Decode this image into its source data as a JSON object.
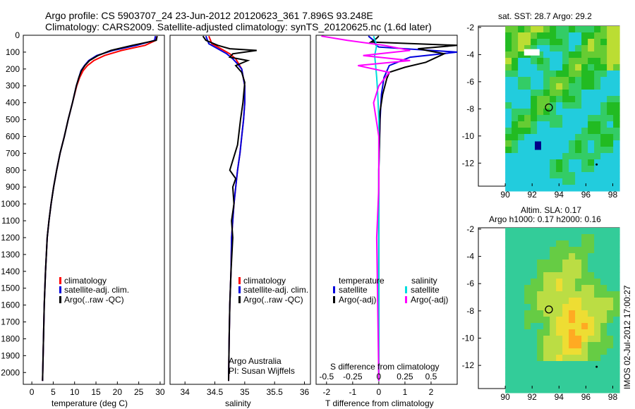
{
  "header": {
    "line1": "Argo profile: CS 5903707_24 23-Jun-2012 20120623_361 7.896S 93.248E",
    "line2": "Climatology: CARS2009. Satellite-adjusted climatology: synTS_20120625.nc (1.6d later)"
  },
  "colors": {
    "climatology": "#ff0000",
    "satellite": "#0000dd",
    "argo": "#000000",
    "salinity": "#00dddd",
    "argo_adj_salinity": "#ff00ff"
  },
  "panels": {
    "depth_ticks": [
      "0",
      "100",
      "200",
      "300",
      "400",
      "500",
      "600",
      "700",
      "800",
      "900",
      "1000",
      "1100",
      "1200",
      "1300",
      "1400",
      "1500",
      "1600",
      "1700",
      "1800",
      "1900",
      "2000"
    ],
    "temperature": {
      "xlabel": "temperature (deg C)",
      "xticks": [
        "0",
        "5",
        "10",
        "15",
        "20",
        "25",
        "30"
      ],
      "legend": [
        "climatology",
        "satellite-adj. clim.",
        "Argo(..raw -QC)"
      ]
    },
    "salinity": {
      "xlabel": "salinity",
      "xticks": [
        "34",
        "34.5",
        "35",
        "35.5",
        "36"
      ],
      "legend": [
        "climatology",
        "satellite-adj. clim.",
        "Argo(..raw -QC)"
      ],
      "note1": "Argo Australia",
      "note2": "PI: Susan Wijffels"
    },
    "difference": {
      "xlabel": "T difference from climatology",
      "xticks": [
        "-2",
        "-1",
        "0",
        "1",
        "2"
      ],
      "top_label": "S difference from climatology",
      "top_ticks": [
        "-0.5",
        "-0.25",
        "0",
        "0.25",
        "0.5"
      ],
      "legend_head_t": "temperature",
      "legend_head_s": "salinity",
      "legend_t": [
        "satellite",
        "Argo(-adj)"
      ],
      "legend_s": [
        "satellite",
        "Argo(-adj)"
      ]
    },
    "map_top": {
      "title": "sat. SST: 28.7 Argo: 29.2",
      "yticks": [
        "-2",
        "-4",
        "-6",
        "-8",
        "-10",
        "-12"
      ],
      "xticks": [
        "90",
        "92",
        "94",
        "96",
        "98"
      ]
    },
    "map_bottom": {
      "title1": "Altim. SLA: 0.17",
      "title2": "Argo h1000: 0.17 h2000: 0.16",
      "yticks": [
        "-2",
        "-4",
        "-6",
        "-8",
        "-10",
        "-12"
      ],
      "xticks": [
        "90",
        "92",
        "94",
        "96",
        "98"
      ]
    },
    "stamp": "IMOS 02-Jul-2012 17:00:27"
  },
  "chart_data": [
    {
      "type": "line",
      "title": "",
      "xlabel": "temperature (deg C)",
      "ylabel": "",
      "xlim": [
        -2,
        31
      ],
      "ylim": [
        2070,
        0
      ],
      "series": [
        {
          "name": "climatology",
          "x": [
            29.3,
            29.0,
            26.5,
            21.0,
            17.0,
            14.5,
            13.0,
            12.0,
            11.2,
            10.5,
            9.5,
            8.5,
            7.6,
            6.6,
            5.8,
            5.1,
            4.5,
            4.0,
            3.6,
            3.2,
            2.9,
            2.5
          ],
          "y": [
            5,
            30,
            60,
            90,
            120,
            150,
            180,
            210,
            250,
            300,
            400,
            500,
            600,
            700,
            800,
            900,
            1000,
            1100,
            1200,
            1400,
            1600,
            2050
          ]
        },
        {
          "name": "satellite-adj. clim.",
          "x": [
            28.9,
            28.7,
            24.5,
            19.0,
            15.2,
            13.3,
            12.3,
            11.5,
            11.0,
            10.4,
            9.5,
            8.5,
            7.6,
            6.6,
            5.8,
            5.1,
            4.5,
            4.0,
            3.6,
            3.2,
            2.9,
            2.5
          ],
          "y": [
            5,
            30,
            60,
            90,
            120,
            150,
            180,
            210,
            250,
            300,
            400,
            500,
            600,
            700,
            800,
            900,
            1000,
            1100,
            1200,
            1400,
            1600,
            2050
          ]
        },
        {
          "name": "Argo(..raw -QC)",
          "x": [
            29.3,
            29.1,
            23.5,
            18.5,
            15.5,
            13.5,
            12.4,
            11.6,
            11.0,
            10.4,
            9.5,
            8.5,
            7.6,
            6.6,
            5.8,
            5.1,
            4.5,
            4.0,
            3.6,
            3.2,
            2.9,
            2.5
          ],
          "y": [
            5,
            30,
            60,
            90,
            120,
            150,
            180,
            210,
            250,
            300,
            400,
            500,
            600,
            700,
            800,
            900,
            1000,
            1100,
            1200,
            1400,
            1600,
            2050
          ]
        }
      ]
    },
    {
      "type": "line",
      "title": "",
      "xlabel": "salinity",
      "ylabel": "",
      "xlim": [
        33.75,
        36.1
      ],
      "ylim": [
        2070,
        0
      ],
      "series": [
        {
          "name": "climatology",
          "x": [
            34.4,
            34.45,
            34.6,
            34.75,
            34.85,
            34.9,
            34.95,
            34.97,
            35.0,
            35.0,
            34.98,
            34.95,
            34.92,
            34.88,
            34.85,
            34.82,
            34.8,
            34.78,
            34.77,
            34.75,
            34.74,
            34.73
          ],
          "y": [
            5,
            50,
            80,
            110,
            140,
            170,
            200,
            240,
            300,
            400,
            500,
            600,
            700,
            800,
            900,
            1000,
            1100,
            1200,
            1400,
            1600,
            1800,
            2050
          ]
        },
        {
          "name": "satellite-adj. clim.",
          "x": [
            34.35,
            34.4,
            34.55,
            34.7,
            34.8,
            34.88,
            34.95,
            34.97,
            35.0,
            35.0,
            34.98,
            34.95,
            34.92,
            34.88,
            34.85,
            34.82,
            34.8,
            34.78,
            34.77,
            34.75,
            34.74,
            34.73
          ],
          "y": [
            5,
            50,
            80,
            110,
            140,
            170,
            200,
            240,
            300,
            400,
            500,
            600,
            700,
            800,
            900,
            1000,
            1100,
            1200,
            1400,
            1600,
            1800,
            2050
          ]
        },
        {
          "name": "Argo(..raw -QC)",
          "x": [
            34.3,
            34.35,
            34.55,
            34.75,
            35.2,
            34.8,
            34.75,
            35.05,
            34.85,
            34.95,
            35.0,
            34.97,
            34.93,
            34.88,
            34.75,
            34.85,
            34.8,
            34.82,
            34.78,
            34.8,
            34.77,
            34.75,
            34.74,
            34.73
          ],
          "y": [
            5,
            30,
            60,
            80,
            90,
            110,
            130,
            150,
            180,
            220,
            280,
            400,
            500,
            650,
            800,
            850,
            900,
            1000,
            1100,
            1200,
            1400,
            1600,
            1800,
            2050
          ]
        }
      ]
    },
    {
      "type": "line",
      "title": "",
      "xlabel": "T difference from climatology",
      "ylabel": "",
      "xlim": [
        -2.4,
        3.0
      ],
      "ylim": [
        2070,
        0
      ],
      "series": [
        {
          "name": "satellite",
          "x": [
            -0.4,
            -0.2,
            -0.1,
            0.0,
            3.0,
            1.2,
            0.4,
            0.2,
            0.1,
            0.05,
            0.0,
            0.0,
            0.0,
            0.0
          ],
          "y": [
            5,
            30,
            60,
            70,
            100,
            130,
            180,
            250,
            350,
            500,
            800,
            1200,
            1600,
            2050
          ]
        },
        {
          "name": "Argo(-adj)",
          "x": [
            0.0,
            -0.1,
            -0.3,
            3.0,
            1.5,
            2.5,
            1.8,
            1.0,
            0.4,
            0.3,
            0.15,
            0.05,
            0.0,
            0.0,
            0.0
          ],
          "y": [
            5,
            20,
            40,
            60,
            80,
            110,
            160,
            190,
            220,
            260,
            350,
            450,
            800,
            1200,
            2050
          ]
        },
        {
          "name": "salinity satellite",
          "x": [
            -0.05,
            -0.02,
            -0.04,
            -0.03,
            -0.02,
            -0.01,
            0.0,
            0.0,
            0.0,
            0.0
          ],
          "y": [
            5,
            60,
            120,
            180,
            250,
            350,
            500,
            800,
            1400,
            2050
          ]
        },
        {
          "name": "salinity Argo(-adj)",
          "x": [
            -0.55,
            -0.3,
            0.05,
            0.3,
            -0.15,
            0.3,
            -0.2,
            0.1,
            0.0,
            -0.05,
            0.0,
            0.0,
            -0.02,
            0.0
          ],
          "y": [
            5,
            30,
            60,
            90,
            120,
            150,
            180,
            220,
            300,
            400,
            600,
            900,
            1200,
            2050
          ]
        }
      ]
    },
    {
      "type": "heatmap",
      "title": "sat. SST: 28.7 Argo: 29.2",
      "xlim": [
        88.0,
        98.5
      ],
      "ylim": [
        -13.7,
        -1.9
      ],
      "argo_position": [
        93.248,
        -7.896
      ]
    },
    {
      "type": "heatmap",
      "title": "Altim. SLA: 0.17 / Argo h1000: 0.17 h2000: 0.16",
      "xlim": [
        88.0,
        98.5
      ],
      "ylim": [
        -13.7,
        -1.9
      ],
      "argo_position": [
        93.248,
        -7.896
      ]
    }
  ]
}
